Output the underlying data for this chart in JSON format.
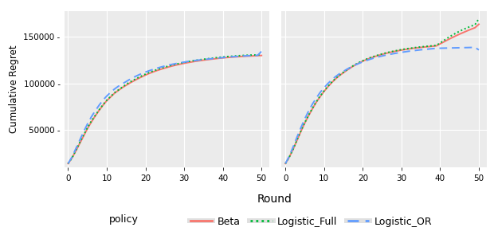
{
  "xlabel": "Round",
  "ylabel": "Cumulative Regret",
  "x_ticks": [
    0,
    10,
    20,
    30,
    40,
    50
  ],
  "y_ticks": [
    50000,
    100000,
    150000
  ],
  "ylim": [
    10000,
    178000
  ],
  "xlim": [
    -1,
    52
  ],
  "background_color": "#EBEBEB",
  "grid_color": "#FFFFFF",
  "panel1": {
    "beta_y": [
      14000,
      20000,
      27500,
      35500,
      43500,
      51500,
      58500,
      65000,
      71000,
      76500,
      81500,
      85500,
      89500,
      92500,
      95500,
      98000,
      100500,
      102800,
      105000,
      107000,
      109000,
      110800,
      112400,
      113900,
      115200,
      116500,
      117700,
      118800,
      119800,
      120700,
      121600,
      122400,
      123100,
      123800,
      124400,
      125000,
      125500,
      126000,
      126500,
      127000,
      127400,
      127800,
      128100,
      128400,
      128700,
      129000,
      129200,
      129400,
      129600,
      129800,
      130000
    ],
    "logfull_y": [
      14000,
      20000,
      28000,
      36500,
      44500,
      52500,
      59500,
      65500,
      71500,
      77000,
      82000,
      86000,
      90000,
      93000,
      96000,
      99000,
      101500,
      103800,
      106000,
      108000,
      110000,
      111800,
      113400,
      114900,
      116200,
      117500,
      118700,
      119800,
      120800,
      121700,
      122600,
      123400,
      124100,
      124800,
      125400,
      126000,
      126500,
      127000,
      127500,
      128000,
      128400,
      128800,
      129100,
      129400,
      129700,
      130000,
      130200,
      130400,
      130550,
      130650,
      131000
    ],
    "logor_y": [
      14000,
      21000,
      30000,
      39000,
      48000,
      56500,
      64000,
      70500,
      76500,
      82000,
      86500,
      90500,
      94000,
      97000,
      99500,
      102000,
      104500,
      106700,
      108700,
      110500,
      112200,
      113700,
      115100,
      116400,
      117600,
      118700,
      119700,
      120600,
      121400,
      122200,
      122900,
      123600,
      124200,
      124700,
      125200,
      125700,
      126100,
      126500,
      126900,
      127300,
      127700,
      128100,
      128500,
      128800,
      129100,
      129400,
      129650,
      129850,
      130000,
      130200,
      134500
    ]
  },
  "panel2": {
    "beta_y": [
      14000,
      21000,
      29500,
      39000,
      48500,
      57500,
      65500,
      73000,
      80000,
      86000,
      91500,
      96500,
      101000,
      105000,
      108500,
      111500,
      114500,
      117200,
      119700,
      121900,
      123900,
      125700,
      127300,
      128700,
      130000,
      131200,
      132300,
      133300,
      134200,
      135000,
      135800,
      136500,
      137100,
      137700,
      138200,
      138700,
      139100,
      139500,
      139900,
      140300,
      142500,
      144700,
      146900,
      149000,
      151000,
      152900,
      154700,
      156500,
      158200,
      159800,
      163500
    ],
    "logfull_y": [
      14000,
      21000,
      29500,
      39500,
      49000,
      58000,
      66000,
      73500,
      80500,
      86500,
      92000,
      97000,
      101500,
      105500,
      109000,
      112000,
      115000,
      117700,
      120200,
      122400,
      124400,
      126200,
      127800,
      129200,
      130500,
      131700,
      132800,
      133800,
      134700,
      135500,
      136300,
      137000,
      137600,
      138200,
      138700,
      139200,
      139600,
      140000,
      140400,
      140800,
      143500,
      146200,
      149000,
      151500,
      153800,
      156000,
      158000,
      159800,
      161500,
      163000,
      169500
    ],
    "logor_y": [
      14000,
      22000,
      32000,
      42500,
      52500,
      62000,
      70500,
      78000,
      84500,
      90500,
      95500,
      100000,
      104000,
      107500,
      110500,
      113000,
      115500,
      117700,
      119700,
      121500,
      123200,
      124700,
      126100,
      127400,
      128500,
      129500,
      130400,
      131200,
      132000,
      132700,
      133400,
      134000,
      134600,
      135100,
      135600,
      136100,
      136500,
      136900,
      137300,
      137700,
      137800,
      137900,
      138000,
      138100,
      138200,
      138300,
      138400,
      138500,
      138600,
      138700,
      136000
    ]
  },
  "beta_color": "#F8766D",
  "logfull_color": "#00BA38",
  "logor_color": "#619CFF",
  "lw": 1.4,
  "legend_handle_bg": "#E8E8E8"
}
